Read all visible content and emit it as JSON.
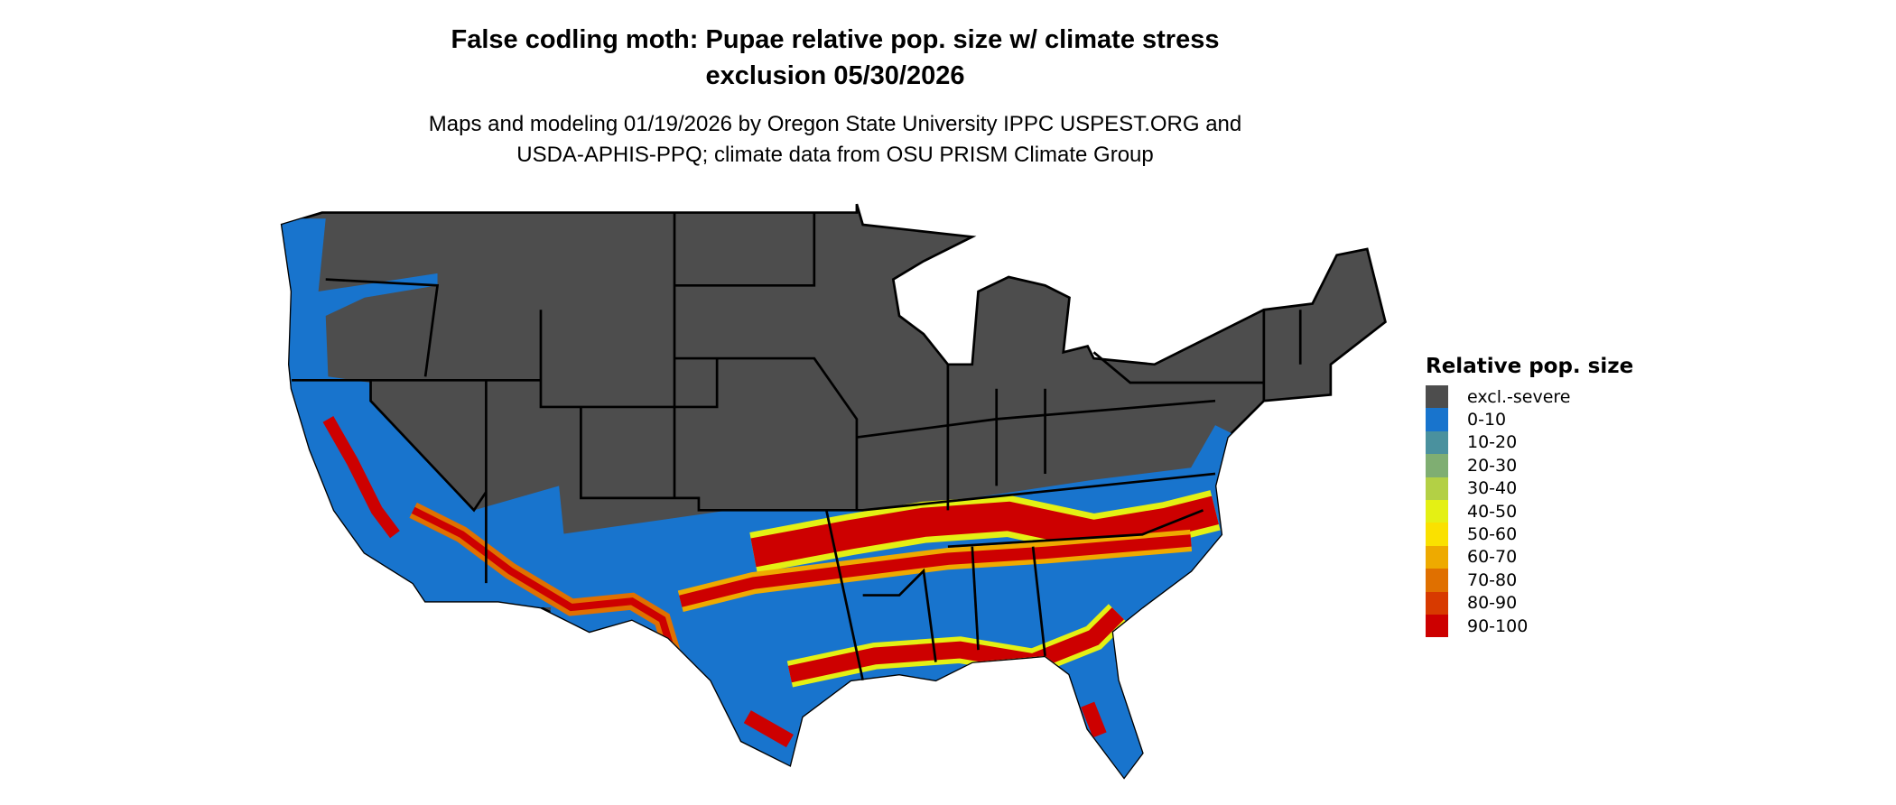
{
  "title_line1": "False codling moth: Pupae relative pop. size w/ climate stress",
  "title_line2": "exclusion 05/30/2026",
  "subtitle_line1": "Maps and modeling 01/19/2026 by Oregon State University IPPC USPEST.ORG and",
  "subtitle_line2": "USDA-APHIS-PPQ; climate data from OSU PRISM Climate Group",
  "legend": {
    "title": "Relative pop. size",
    "items": [
      {
        "label": "excl.-severe",
        "color": "#4d4d4d"
      },
      {
        "label": "0-10",
        "color": "#1874cd"
      },
      {
        "label": "10-20",
        "color": "#4a919e"
      },
      {
        "label": "20-30",
        "color": "#7fae72"
      },
      {
        "label": "30-40",
        "color": "#b3d045"
      },
      {
        "label": "40-50",
        "color": "#e4f014"
      },
      {
        "label": "50-60",
        "color": "#fae100"
      },
      {
        "label": "60-70",
        "color": "#eeaa00"
      },
      {
        "label": "70-80",
        "color": "#e07000"
      },
      {
        "label": "80-90",
        "color": "#d83a00"
      },
      {
        "label": "90-100",
        "color": "#cd0000"
      }
    ]
  }
}
